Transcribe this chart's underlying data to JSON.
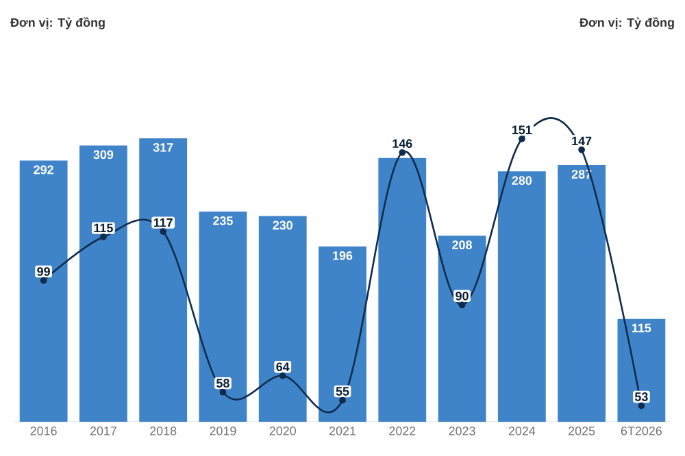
{
  "chart_data": {
    "type": "bar",
    "categories": [
      "2016",
      "2017",
      "2018",
      "2019",
      "2020",
      "2021",
      "2022",
      "2023",
      "2024",
      "2025",
      "6T2026"
    ],
    "series": [
      {
        "color": "#3f84c8",
        "values": [
          292,
          309,
          317,
          235,
          230,
          196,
          295,
          208,
          280,
          287,
          115
        ],
        "value_labels": [
          "292",
          "309",
          "317",
          "235",
          "230",
          "196",
          null,
          "208",
          "280",
          "287",
          "115"
        ]
      },
      {
        "type": "line",
        "axis": "y2",
        "color": "#0f2c4c",
        "marker": "circle",
        "values": [
          99,
          115,
          117,
          58,
          64,
          55,
          146,
          90,
          151,
          147,
          53
        ],
        "data_labels": true
      }
    ],
    "tick_labels": "x",
    "annotations": [
      "Đơn vị: Tỷ đồng",
      "Đơn vị: Tỷ đồng"
    ]
  }
}
